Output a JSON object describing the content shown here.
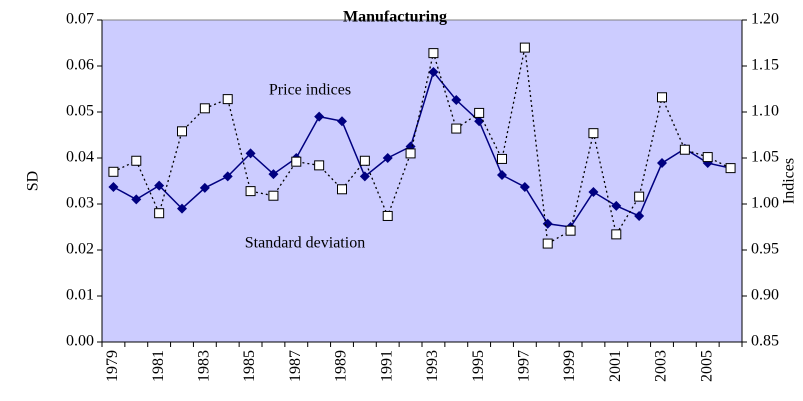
{
  "chart_data": {
    "type": "line",
    "title": "Manufacturing",
    "ylabel": "SD",
    "y2label": "Indices",
    "categories": [
      "1979",
      null,
      "1981",
      null,
      "1983",
      null,
      "1985",
      null,
      "1987",
      null,
      "1989",
      null,
      "1991",
      null,
      "1993",
      null,
      "1995",
      null,
      "1997",
      null,
      "1999",
      null,
      "2001",
      null,
      "2003",
      null,
      "2005",
      null
    ],
    "series": [
      {
        "name": "Standard deviation",
        "color": "#000080",
        "marker": "diamond",
        "values": [
          0.0337,
          0.031,
          0.034,
          0.029,
          0.0335,
          0.036,
          0.041,
          0.0365,
          0.04,
          0.049,
          0.048,
          0.036,
          0.04,
          0.0425,
          0.0587,
          0.0526,
          0.048,
          0.0363,
          0.0337,
          0.0257,
          0.025,
          0.0326,
          0.0296,
          0.0274,
          0.0389,
          0.042,
          0.0389,
          0.0378
        ]
      },
      {
        "name": "Price indices",
        "color": "#000000",
        "marker": "square",
        "axis": "y2",
        "values": [
          1.035,
          1.047,
          0.99,
          1.079,
          1.104,
          1.114,
          1.014,
          1.009,
          1.046,
          1.042,
          1.016,
          1.047,
          0.987,
          1.055,
          1.164,
          1.082,
          1.099,
          1.049,
          1.17,
          0.957,
          0.971,
          1.077,
          0.967,
          1.008,
          1.116,
          1.059,
          1.051,
          1.039
        ]
      }
    ],
    "ylim": [
      0,
      0.07
    ],
    "yticks": [
      {
        "value": 0,
        "label": "0.00"
      },
      0.01,
      0.02,
      0.03,
      0.04,
      0.05,
      0.06,
      0.07
    ],
    "y2lim": [
      0.85,
      1.2
    ],
    "y2ticks": [
      0.85,
      {
        "value": 0.9,
        "label": "0.90"
      },
      0.95,
      {
        "value": 1,
        "label": "1.00"
      },
      1.05,
      {
        "value": 1.1,
        "label": "1.10"
      },
      1.15,
      {
        "value": 1.2,
        "label": "1.20"
      }
    ],
    "background": "#ccccff"
  }
}
